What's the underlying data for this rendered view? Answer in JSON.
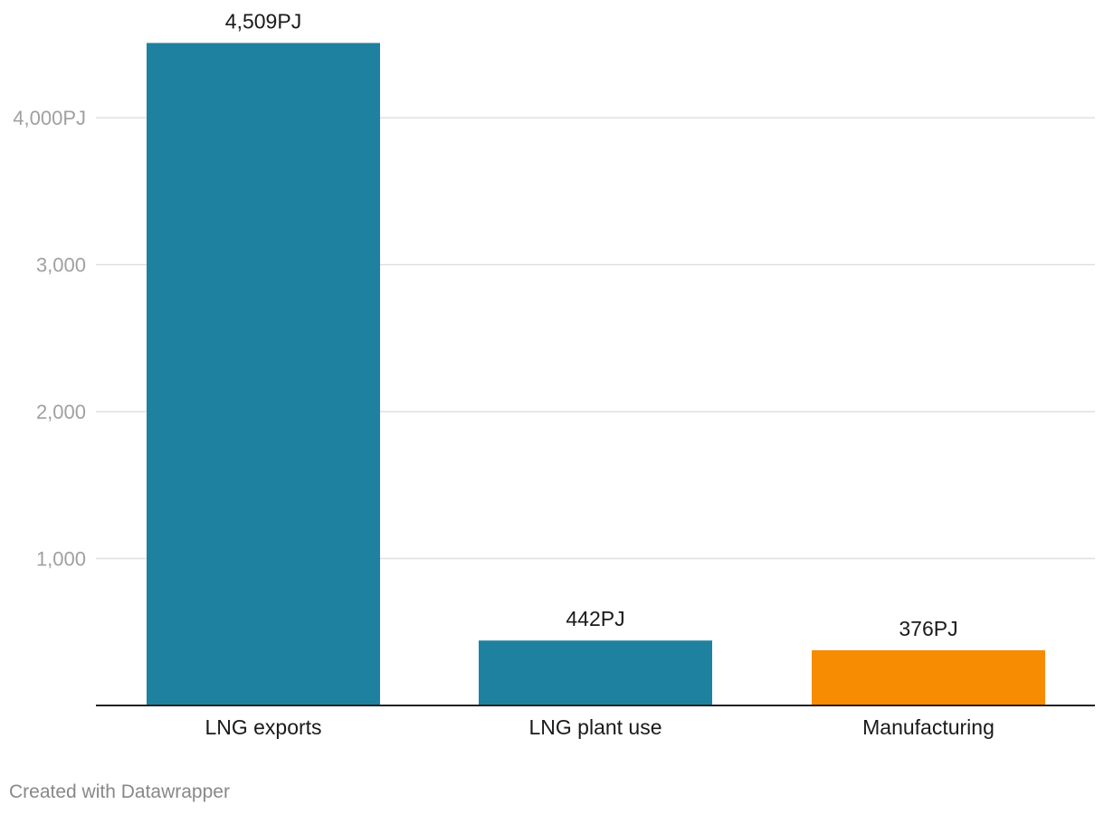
{
  "chart_data": {
    "type": "bar",
    "categories": [
      "LNG exports",
      "LNG plant use",
      "Manufacturing"
    ],
    "values": [
      4509,
      442,
      376
    ],
    "value_labels": [
      "4,509PJ",
      "442PJ",
      "376PJ"
    ],
    "bar_colors": [
      "#1f81a0",
      "#1f81a0",
      "#f78b02"
    ],
    "ylim": [
      0,
      4800
    ],
    "yticks": [
      {
        "value": 1000,
        "label": "1,000"
      },
      {
        "value": 2000,
        "label": "2,000"
      },
      {
        "value": 3000,
        "label": "3,000"
      },
      {
        "value": 4000,
        "label": "4,000PJ"
      }
    ],
    "grid": true,
    "legend": "none"
  },
  "credit": "Created with Datawrapper"
}
